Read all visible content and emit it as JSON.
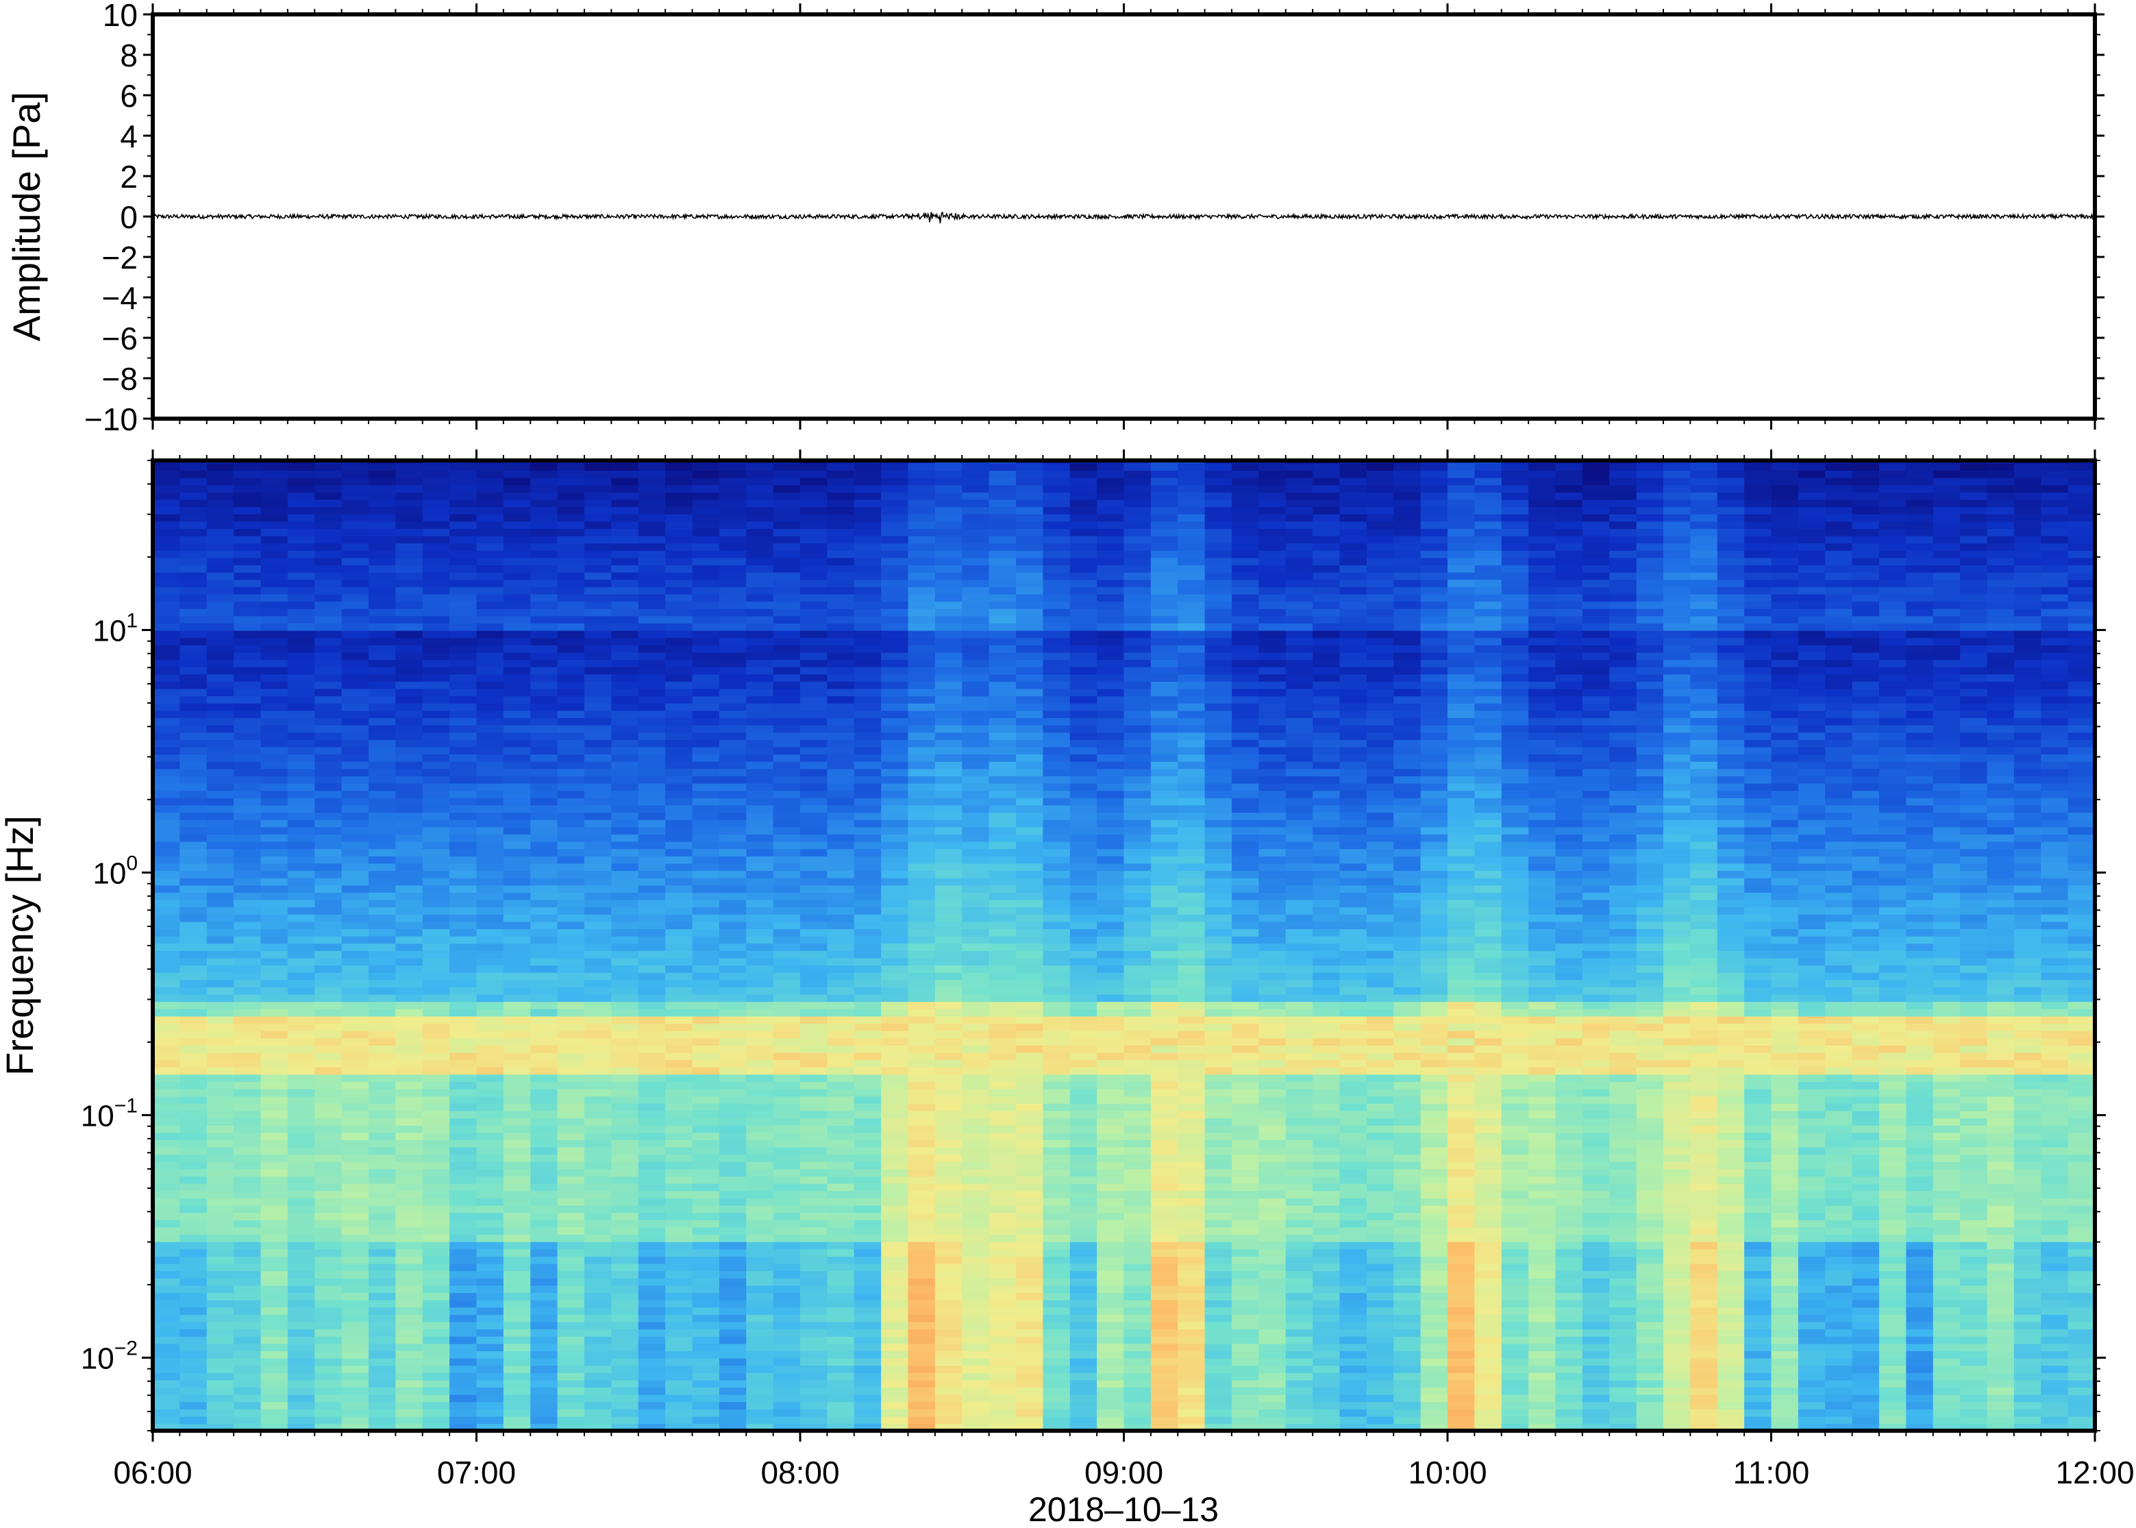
{
  "chart_data": [
    {
      "type": "line",
      "ylabel": "Amplitude [Pa]",
      "ylim": [
        -10,
        10
      ],
      "yticks": [
        "10",
        "8",
        "6",
        "4",
        "2",
        "0",
        "−2",
        "−4",
        "−6",
        "−8",
        "−10"
      ],
      "x_range": [
        "2018-10-13 06:00",
        "2018-10-13 12:00"
      ],
      "series": [
        {
          "values_description_free": true,
          "baseline": 0,
          "typical_peak_abs": 0.1,
          "burst_time": "08:25",
          "burst_peak_abs": 0.4
        }
      ]
    },
    {
      "type": "heatmap",
      "ylabel": "Frequency [Hz]",
      "xlabel": "2018–10–13",
      "yscale": "log",
      "ylim": [
        0.005,
        50
      ],
      "ytick_labels": [
        {
          "value": 10,
          "base": "10",
          "exp": "1"
        },
        {
          "value": 1,
          "base": "10",
          "exp": "0"
        },
        {
          "value": 0.1,
          "base": "10",
          "exp": "−1"
        },
        {
          "value": 0.01,
          "base": "10",
          "exp": "−2"
        }
      ],
      "xtick_labels": [
        "06:00",
        "07:00",
        "08:00",
        "09:00",
        "10:00",
        "11:00",
        "12:00"
      ],
      "colormap": [
        "#0a0a78",
        "#0d2fc4",
        "#1f6fe6",
        "#3fb7f0",
        "#6fe0d0",
        "#b8f0a8",
        "#f0ec8c",
        "#fcbf6a",
        "#f49a52"
      ],
      "microbarom_band_hz": [
        0.15,
        0.25
      ],
      "energetic_times": [
        "08:25",
        "08:40",
        "09:10",
        "10:05",
        "10:45"
      ]
    }
  ]
}
